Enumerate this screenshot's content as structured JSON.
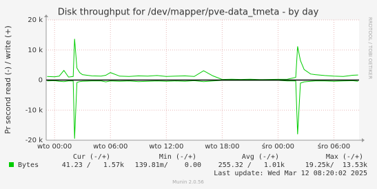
{
  "chart_data": {
    "type": "line",
    "title": "Disk throughput for /dev/mapper/pve-data_tmeta - by day",
    "y_label": "Pr second read (-) / write (+)",
    "side_label": "RRDTOOL / TOBI OETIKER",
    "x": [
      -0.8,
      0,
      0.5,
      1,
      1.5,
      2,
      2.15,
      2.4,
      2.7,
      3,
      4,
      5,
      5.5,
      6,
      7,
      8,
      9,
      10,
      11,
      12,
      13,
      14,
      15,
      16,
      17,
      18,
      19,
      20,
      21,
      22,
      23,
      24,
      25,
      25.9,
      26.1,
      26.4,
      26.8,
      27.5,
      28,
      29,
      30,
      31,
      32,
      32.6
    ],
    "series": [
      {
        "color": "#00cc00",
        "values": [
          1200,
          1100,
          1300,
          3200,
          1000,
          1200,
          13700,
          4000,
          2500,
          1800,
          1400,
          1300,
          1600,
          2500,
          1300,
          1200,
          1400,
          1300,
          1500,
          1200,
          1300,
          1400,
          1200,
          3100,
          1400,
          200,
          300,
          200,
          300,
          150,
          200,
          250,
          300,
          900,
          11200,
          6500,
          3500,
          2000,
          1800,
          1500,
          1300,
          1200,
          1600,
          1700
        ]
      },
      {
        "color": "#00cc00",
        "values": [
          -300,
          -200,
          -400,
          -500,
          -300,
          -300,
          -19500,
          -800,
          -500,
          -400,
          -300,
          -300,
          -600,
          -300,
          -400,
          -300,
          -500,
          -400,
          -300,
          -400,
          -300,
          -400,
          -200,
          -500,
          -300,
          -100,
          -100,
          -100,
          -100,
          -100,
          -100,
          -100,
          -300,
          -300,
          -18000,
          -1000,
          -600,
          -400,
          -300,
          -300,
          -400,
          -300,
          -200,
          -400
        ]
      }
    ],
    "xlim": [
      -0.9,
      32.7
    ],
    "xticks": [
      {
        "value": 0,
        "label": "wto 00:00"
      },
      {
        "value": 6,
        "label": "wto 06:00"
      },
      {
        "value": 12,
        "label": "wto 12:00"
      },
      {
        "value": 18,
        "label": "wto 18:00"
      },
      {
        "value": 24,
        "label": "śro 00:00"
      },
      {
        "value": 30,
        "label": "śro 06:00"
      }
    ],
    "ylim": [
      -20000,
      20000
    ],
    "yticks": [
      {
        "value": 20000,
        "label": "20 k"
      },
      {
        "value": 10000,
        "label": "10 k"
      },
      0,
      {
        "value": -10000,
        "label": "-10 k"
      },
      {
        "value": -20000,
        "label": "-20 k"
      }
    ],
    "grid": true,
    "legend": {
      "label": "Bytes",
      "color": "#00cc00",
      "columns": [
        "Cur (-/+)",
        "Min (-/+)",
        "Avg (-/+)",
        "Max (-/+)"
      ],
      "values": [
        "41.23 /   1.57k",
        "139.81m/    0.00",
        "255.32 /   1.01k",
        "19.25k/  13.53k"
      ]
    },
    "last_update": "Last update: Wed Mar 12 08:20:02 2025",
    "footer": "Munin 2.0.56"
  }
}
